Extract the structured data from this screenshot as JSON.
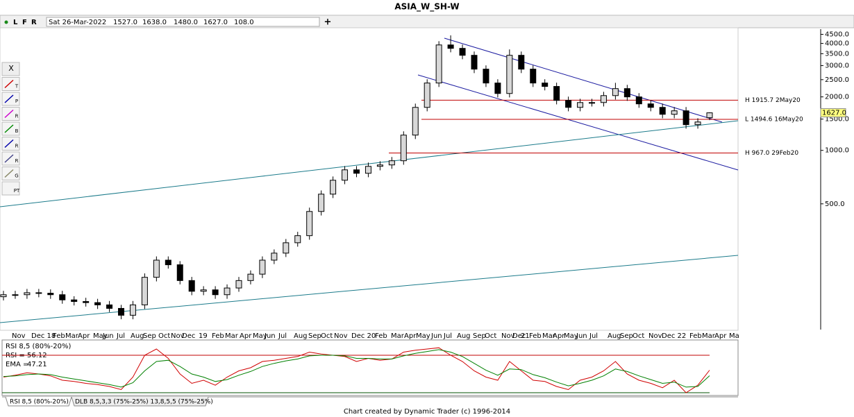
{
  "title": "ASIA_W_SH-W",
  "toolbar": {
    "buttons": [
      "L",
      "F",
      "R"
    ],
    "date": "Sat 26-Mar-2022",
    "open": "1527.0",
    "high": "1638.0",
    "low": "1480.0",
    "close": "1627.0",
    "volume": "108.0"
  },
  "tools": [
    "X",
    "T",
    "P",
    "R",
    "B",
    "R",
    "R",
    "G",
    "PT"
  ],
  "chart_data": [
    {
      "type": "candlestick",
      "log_scale": true,
      "ylim": [
        98,
        4900
      ],
      "yticks": [
        {
          "value": 4500,
          "label": "4500.0"
        },
        {
          "value": 4000,
          "label": "4000.0"
        },
        {
          "value": 3500,
          "label": "3500.0"
        },
        {
          "value": 3000,
          "label": "3000.0"
        },
        {
          "value": 2500,
          "label": "2500.0"
        },
        {
          "value": 2000,
          "label": "2000.0"
        },
        {
          "value": 1500,
          "label": "1500.0"
        },
        {
          "value": 1000,
          "label": "1000.0"
        },
        {
          "value": 500,
          "label": "500.0"
        }
      ],
      "x_labels": [
        "Nov",
        "Dec 18",
        "Feb",
        "Mar",
        "Apr",
        "May",
        "Jun",
        "Jul",
        "Aug",
        "Sep",
        "Oct",
        "Nov",
        "Dec",
        "19",
        "Feb",
        "Mar",
        "Apr",
        "May",
        "Jun",
        "Jul",
        "Aug",
        "Sep",
        "Oct",
        "Nov",
        "Dec 20",
        "Feb",
        "Mar",
        "Apr",
        "May",
        "Jun",
        "Jul",
        "Aug",
        "Sep",
        "Oct",
        "Nov",
        "Dec",
        "21",
        "Feb",
        "Mar",
        "Apr",
        "May",
        "Jun",
        "Jul",
        "Aug",
        "Sep",
        "Oct",
        "Nov",
        "Dec 22",
        "Feb",
        "Mar",
        "Apr",
        "Ma"
      ],
      "open": [
        150,
        154,
        154,
        158,
        157,
        154,
        144,
        141,
        139,
        135,
        129,
        118,
        135,
        193,
        241,
        227,
        185,
        161,
        164,
        154,
        168,
        185,
        201,
        241,
        264,
        302,
        331,
        453,
        567,
        679,
        777,
        743,
        813,
        828,
        874,
        1219,
        1746,
        2394,
        3922,
        3752,
        3429,
        2866,
        2394,
        2090,
        3429,
        2866,
        2394,
        2290,
        1911,
        1746,
        1859,
        1859,
        2034,
        2227,
        2000,
        1827,
        1746,
        1596,
        1670,
        1395,
        1527
      ],
      "high": [
        162,
        162,
        166,
        166,
        165,
        162,
        151,
        148,
        146,
        142,
        135,
        142,
        203,
        253,
        253,
        238,
        194,
        172,
        172,
        176,
        194,
        211,
        253,
        277,
        317,
        348,
        476,
        595,
        713,
        816,
        816,
        854,
        869,
        918,
        1280,
        1833,
        2514,
        4118,
        4440,
        3940,
        3600,
        3009,
        2514,
        3700,
        3600,
        3009,
        2514,
        2405,
        2007,
        1952,
        1952,
        2136,
        2400,
        2338,
        2100,
        1918,
        1833,
        1754,
        1754,
        1517,
        1638
      ],
      "low": [
        143,
        146,
        146,
        149,
        146,
        137,
        134,
        132,
        128,
        123,
        112,
        112,
        128,
        183,
        216,
        176,
        153,
        153,
        146,
        146,
        160,
        176,
        191,
        229,
        251,
        287,
        314,
        430,
        539,
        645,
        706,
        706,
        772,
        787,
        830,
        1158,
        1659,
        2274,
        3564,
        3258,
        2723,
        2274,
        1986,
        1986,
        2723,
        2274,
        2176,
        1815,
        1659,
        1659,
        1766,
        1766,
        1932,
        1900,
        1736,
        1659,
        1516,
        1516,
        1325,
        1325,
        1480
      ],
      "close": [
        154,
        154,
        158,
        157,
        154,
        144,
        141,
        139,
        135,
        129,
        118,
        135,
        193,
        241,
        227,
        185,
        161,
        164,
        154,
        168,
        185,
        201,
        241,
        264,
        302,
        331,
        453,
        567,
        679,
        777,
        743,
        813,
        828,
        874,
        1219,
        1746,
        2394,
        3922,
        3752,
        3429,
        2866,
        2394,
        2090,
        3429,
        2866,
        2394,
        2290,
        1911,
        1746,
        1859,
        1859,
        2034,
        2227,
        2000,
        1827,
        1746,
        1596,
        1670,
        1395,
        1445,
        1627
      ],
      "levels": [
        {
          "value": 1915.7,
          "label": "H 1915.7 2May20"
        },
        {
          "value": 1494.6,
          "label": "L 1494.6 16May20"
        },
        {
          "value": 967.0,
          "label": "H 967.0 29Feb20"
        }
      ]
    },
    {
      "type": "line",
      "title": "RSI 8,5 (80%-20%)",
      "ylim": [
        0,
        100
      ],
      "levels": [
        80,
        20
      ],
      "series": [
        {
          "name": "RSI =",
          "color": "#d00000",
          "values": [
            45,
            48,
            52,
            50,
            47,
            40,
            38,
            35,
            33,
            30,
            25,
            45,
            80,
            90,
            75,
            50,
            35,
            40,
            32,
            45,
            55,
            60,
            70,
            72,
            75,
            78,
            85,
            82,
            80,
            78,
            70,
            75,
            72,
            74,
            85,
            88,
            90,
            92,
            80,
            70,
            55,
            45,
            40,
            70,
            55,
            40,
            38,
            30,
            25,
            40,
            45,
            55,
            70,
            50,
            40,
            35,
            28,
            40,
            20,
            32,
            56.12
          ]
        },
        {
          "name": "EMA =",
          "color": "#008000",
          "values": [
            46,
            47,
            49,
            50,
            49,
            45,
            42,
            39,
            36,
            33,
            29,
            36,
            55,
            70,
            72,
            62,
            50,
            45,
            38,
            41,
            48,
            54,
            62,
            67,
            71,
            74,
            79,
            80,
            80,
            79,
            75,
            75,
            74,
            74,
            79,
            83,
            86,
            89,
            85,
            78,
            67,
            56,
            48,
            58,
            57,
            49,
            44,
            37,
            31,
            35,
            40,
            47,
            58,
            54,
            47,
            41,
            35,
            37,
            29,
            30,
            47.21
          ]
        }
      ]
    }
  ],
  "tabs": [
    "RSI 8,5 (80%-20%)",
    "DLB 8,5,3,3 (75%-25%) 13,8,5,5 (75%-25%)"
  ],
  "footer": "Chart created by Dynamic Trader  (c) 1996-2014"
}
